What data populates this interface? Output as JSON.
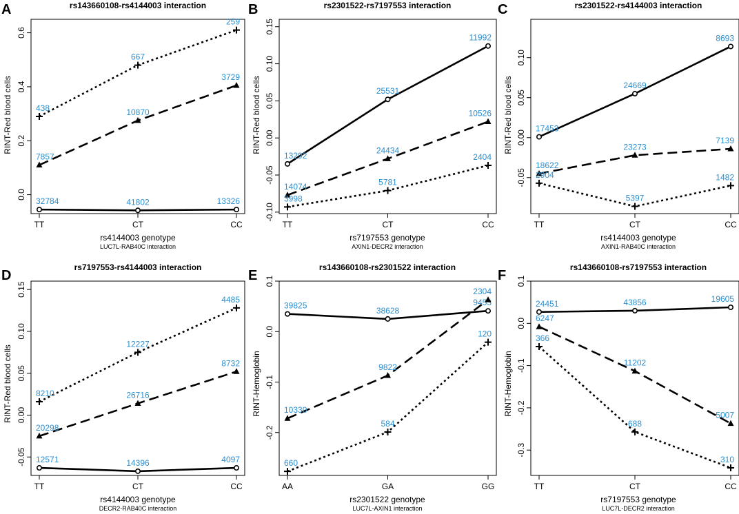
{
  "colors": {
    "line": "#000000",
    "label": "#2b8fd0"
  },
  "chart_data": [
    {
      "type": "line",
      "letter": "A",
      "title": "rs143660108-rs4144003 interaction",
      "xlabel": "rs4144003 genotype",
      "subtitle": "LUC7L-RAB40C interaction",
      "ylabel": "RINT-Red blood cells",
      "categories": [
        "TT",
        "CT",
        "CC"
      ],
      "ylim": [
        -0.07,
        0.65
      ],
      "yticks": [
        0.0,
        0.2,
        0.4,
        0.6
      ],
      "ytick_labels": [
        "0.0",
        "0.2",
        "0.4",
        "0.6"
      ],
      "series": [
        {
          "style": "dotted",
          "marker": "plus",
          "values": [
            0.29,
            0.48,
            0.61
          ],
          "labels": [
            "438",
            "667",
            "259"
          ]
        },
        {
          "style": "dashed",
          "marker": "triangle",
          "values": [
            0.11,
            0.275,
            0.405
          ],
          "labels": [
            "7857",
            "10870",
            "3729"
          ]
        },
        {
          "style": "solid",
          "marker": "circle",
          "values": [
            -0.055,
            -0.058,
            -0.055
          ],
          "labels": [
            "32784",
            "41802",
            "13326"
          ]
        }
      ]
    },
    {
      "type": "line",
      "letter": "B",
      "title": "rs2301522-rs7197553 interaction",
      "xlabel": "rs7197553 genotype",
      "subtitle": "AXIN1-DECR2 interaction",
      "ylabel": "RINT-Red blood cells",
      "categories": [
        "TT",
        "CT",
        "CC"
      ],
      "ylim": [
        -0.102,
        0.16
      ],
      "yticks": [
        -0.1,
        -0.05,
        0.0,
        0.05,
        0.1,
        0.15
      ],
      "ytick_labels": [
        "-0.10",
        "-0.05",
        "0.00",
        "0.05",
        "0.10",
        "0.15"
      ],
      "series": [
        {
          "style": "solid",
          "marker": "circle",
          "values": [
            -0.035,
            0.052,
            0.124
          ],
          "labels": [
            "13292",
            "25531",
            "11992"
          ]
        },
        {
          "style": "dashed",
          "marker": "triangle",
          "values": [
            -0.077,
            -0.028,
            0.022
          ],
          "labels": [
            "14074",
            "24434",
            "10526"
          ]
        },
        {
          "style": "dotted",
          "marker": "plus",
          "values": [
            -0.093,
            -0.071,
            -0.037
          ],
          "labels": [
            "3998",
            "5781",
            "2404"
          ]
        }
      ]
    },
    {
      "type": "line",
      "letter": "C",
      "title": "rs2301522-rs4144003 interaction",
      "xlabel": "rs4144003 genotype",
      "subtitle": "AXIN1-RAB40C interaction",
      "ylabel": "RINT-Red blood cells",
      "categories": [
        "TT",
        "CT",
        "CC"
      ],
      "ylim": [
        -0.095,
        0.148
      ],
      "yticks": [
        -0.05,
        0.0,
        0.05,
        0.1
      ],
      "ytick_labels": [
        "-0.05",
        "0.00",
        "0.05",
        "0.10"
      ],
      "series": [
        {
          "style": "solid",
          "marker": "circle",
          "values": [
            0.001,
            0.055,
            0.114
          ],
          "labels": [
            "17453",
            "24669",
            "8693"
          ]
        },
        {
          "style": "dashed",
          "marker": "triangle",
          "values": [
            -0.045,
            -0.022,
            -0.014
          ],
          "labels": [
            "18622",
            "23273",
            "7139"
          ]
        },
        {
          "style": "dotted",
          "marker": "plus",
          "values": [
            -0.057,
            -0.086,
            -0.06
          ],
          "labels": [
            "2904",
            "5397",
            "1482"
          ]
        }
      ]
    },
    {
      "type": "line",
      "letter": "D",
      "title": "rs7197553-rs4144003 interaction",
      "xlabel": "rs4144003 genotype",
      "subtitle": "DECR2-RAB40C interaction",
      "ylabel": "RINT-Red blood cells",
      "categories": [
        "TT",
        "CT",
        "CC"
      ],
      "ylim": [
        -0.072,
        0.16
      ],
      "yticks": [
        -0.05,
        0.0,
        0.05,
        0.1,
        0.15
      ],
      "ytick_labels": [
        "-0.05",
        "0.00",
        "0.05",
        "0.10",
        "0.15"
      ],
      "series": [
        {
          "style": "dotted",
          "marker": "plus",
          "values": [
            0.016,
            0.075,
            0.128
          ],
          "labels": [
            "8210",
            "12227",
            "4485"
          ]
        },
        {
          "style": "dashed",
          "marker": "triangle",
          "values": [
            -0.025,
            0.014,
            0.052
          ],
          "labels": [
            "20298",
            "26716",
            "8732"
          ]
        },
        {
          "style": "solid",
          "marker": "circle",
          "values": [
            -0.063,
            -0.067,
            -0.063
          ],
          "labels": [
            "12571",
            "14396",
            "4097"
          ]
        }
      ]
    },
    {
      "type": "line",
      "letter": "E",
      "title": "rs143660108-rs2301522 interaction",
      "xlabel": "rs2301522 genotype",
      "subtitle": "LUC7L-AXIN1 interaction",
      "ylabel": "RINT-Hemoglobin",
      "categories": [
        "AA",
        "GA",
        "GG"
      ],
      "ylim": [
        -0.285,
        0.1
      ],
      "yticks": [
        -0.2,
        -0.1,
        0.0,
        0.1
      ],
      "ytick_labels": [
        "-0.2",
        "-0.1",
        "0.0",
        "0.1"
      ],
      "series": [
        {
          "style": "solid",
          "marker": "circle",
          "values": [
            0.035,
            0.025,
            0.041
          ],
          "labels": [
            "39825",
            "38628",
            "9453"
          ]
        },
        {
          "style": "dashed",
          "marker": "triangle",
          "values": [
            -0.172,
            -0.087,
            0.063
          ],
          "labels": [
            "10330",
            "9822",
            "2304"
          ]
        },
        {
          "style": "dotted",
          "marker": "plus",
          "values": [
            -0.277,
            -0.199,
            -0.021
          ],
          "labels": [
            "660",
            "584",
            "120"
          ]
        }
      ]
    },
    {
      "type": "line",
      "letter": "F",
      "title": "rs143660108-rs7197553 interaction",
      "xlabel": "rs7197553 genotype",
      "subtitle": "LUC7L-DECR2 interaction",
      "ylabel": "RINT-Hemoglobin",
      "categories": [
        "TT",
        "CT",
        "CC"
      ],
      "ylim": [
        -0.36,
        0.1
      ],
      "yticks": [
        -0.3,
        -0.2,
        -0.1,
        0.0,
        0.1
      ],
      "ytick_labels": [
        "-0.3",
        "-0.2",
        "-0.1",
        "0.0",
        "0.1"
      ],
      "series": [
        {
          "style": "solid",
          "marker": "circle",
          "values": [
            0.027,
            0.03,
            0.038
          ],
          "labels": [
            "24451",
            "43856",
            "19605"
          ]
        },
        {
          "style": "dashed",
          "marker": "triangle",
          "values": [
            -0.008,
            -0.113,
            -0.237
          ],
          "labels": [
            "6247",
            "11202",
            "5007"
          ]
        },
        {
          "style": "dotted",
          "marker": "plus",
          "values": [
            -0.055,
            -0.257,
            -0.342
          ],
          "labels": [
            "366",
            "688",
            "310"
          ]
        }
      ]
    }
  ]
}
